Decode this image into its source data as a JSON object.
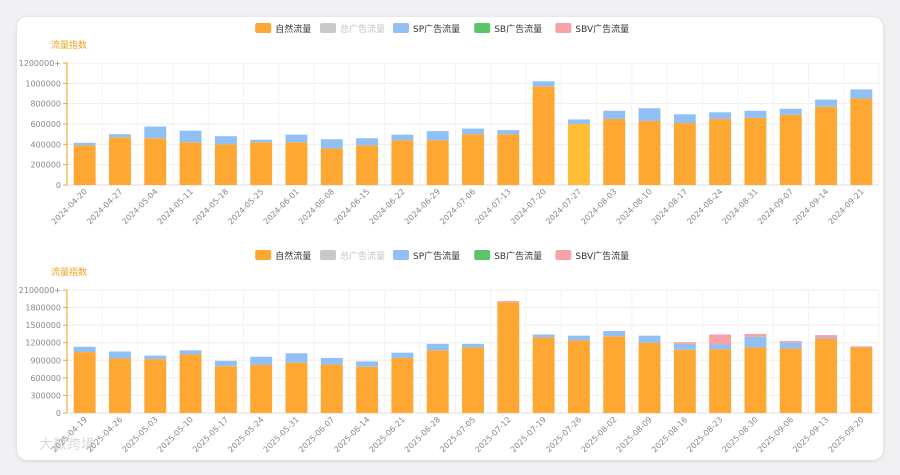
{
  "colors": {
    "natural": "#ffa733",
    "natural_highlight": "#ffbd38",
    "general": "#c9c9c9",
    "sp": "#91c0f5",
    "sb": "#5cc46a",
    "sbv": "#f5a3a8",
    "axis_label": "#f0a21e",
    "grid": "#eeeeee",
    "tick": "#888888"
  },
  "watermark": "大数跨境",
  "chart_data": [
    {
      "type": "bar",
      "stacked": true,
      "ylabel": "流量指数",
      "ylim": [
        0,
        1200000
      ],
      "yticks": [
        0,
        200000,
        400000,
        600000,
        800000,
        1000000,
        1200000
      ],
      "ytick_labels": [
        "0",
        "200000",
        "400000",
        "600000",
        "800000",
        "1000000",
        "1200000+"
      ],
      "legend_position": "top-center",
      "grid": true,
      "highlight_index": 14,
      "categories": [
        "2024-04-20",
        "2024-04-27",
        "2024-05-04",
        "2024-05-11",
        "2024-05-18",
        "2024-05-25",
        "2024-06-01",
        "2024-06-08",
        "2024-06-15",
        "2024-06-22",
        "2024-06-29",
        "2024-07-06",
        "2024-07-13",
        "2024-07-20",
        "2024-07-27",
        "2024-08-03",
        "2024-08-10",
        "2024-08-17",
        "2024-08-24",
        "2024-08-31",
        "2024-09-07",
        "2024-09-14",
        "2024-09-21"
      ],
      "series": [
        {
          "name": "自然流量",
          "key": "natural",
          "values": [
            390000,
            470000,
            460000,
            420000,
            400000,
            420000,
            420000,
            360000,
            390000,
            440000,
            440000,
            500000,
            500000,
            970000,
            600000,
            650000,
            630000,
            610000,
            650000,
            660000,
            690000,
            770000,
            850000
          ]
        },
        {
          "name": "总广告流量",
          "key": "general",
          "disabled": true,
          "values": [
            0,
            0,
            0,
            0,
            0,
            0,
            0,
            0,
            0,
            0,
            0,
            0,
            0,
            0,
            0,
            0,
            0,
            0,
            0,
            0,
            0,
            0,
            0
          ]
        },
        {
          "name": "SP广告流量",
          "key": "sp",
          "values": [
            25000,
            30000,
            115000,
            115000,
            80000,
            25000,
            75000,
            90000,
            70000,
            55000,
            90000,
            55000,
            40000,
            50000,
            45000,
            80000,
            125000,
            85000,
            65000,
            70000,
            60000,
            70000,
            90000
          ]
        },
        {
          "name": "SB广告流量",
          "key": "sb",
          "values": [
            0,
            0,
            0,
            0,
            0,
            0,
            0,
            0,
            0,
            0,
            0,
            0,
            0,
            0,
            0,
            0,
            0,
            0,
            0,
            0,
            0,
            0,
            0
          ]
        },
        {
          "name": "SBV广告流量",
          "key": "sbv",
          "values": [
            0,
            0,
            0,
            0,
            0,
            0,
            0,
            0,
            0,
            0,
            0,
            0,
            0,
            0,
            0,
            0,
            0,
            0,
            0,
            0,
            0,
            0,
            0
          ]
        }
      ]
    },
    {
      "type": "bar",
      "stacked": true,
      "ylabel": "流量指数",
      "ylim": [
        0,
        2100000
      ],
      "yticks": [
        0,
        300000,
        600000,
        900000,
        1200000,
        1500000,
        1800000,
        2100000
      ],
      "ytick_labels": [
        "0",
        "300000",
        "600000",
        "900000",
        "1200000",
        "1500000",
        "1800000",
        "2100000+"
      ],
      "legend_position": "top-center",
      "grid": true,
      "highlight_index": -1,
      "categories": [
        "2025-04-19",
        "2025-04-26",
        "2025-05-03",
        "2025-05-10",
        "2025-05-17",
        "2025-05-24",
        "2025-05-31",
        "2025-06-07",
        "2025-06-14",
        "2025-06-21",
        "2025-06-28",
        "2025-07-05",
        "2025-07-12",
        "2025-07-19",
        "2025-07-26",
        "2025-08-02",
        "2025-08-09",
        "2025-08-16",
        "2025-08-23",
        "2025-08-30",
        "2025-09-06",
        "2025-09-13",
        "2025-09-20"
      ],
      "series": [
        {
          "name": "自然流量",
          "key": "natural",
          "values": [
            1040000,
            930000,
            920000,
            1000000,
            800000,
            820000,
            860000,
            830000,
            790000,
            940000,
            1070000,
            1120000,
            1890000,
            1290000,
            1240000,
            1310000,
            1200000,
            1080000,
            1090000,
            1120000,
            1100000,
            1270000,
            1120000
          ]
        },
        {
          "name": "总广告流量",
          "key": "general",
          "disabled": true,
          "values": [
            0,
            0,
            0,
            0,
            0,
            0,
            0,
            0,
            0,
            0,
            0,
            0,
            0,
            0,
            0,
            0,
            0,
            0,
            0,
            0,
            0,
            0,
            0
          ]
        },
        {
          "name": "SP广告流量",
          "key": "sp",
          "values": [
            90000,
            120000,
            60000,
            70000,
            90000,
            140000,
            160000,
            110000,
            90000,
            90000,
            110000,
            60000,
            0,
            50000,
            80000,
            90000,
            120000,
            100000,
            80000,
            180000,
            100000,
            20000,
            10000
          ]
        },
        {
          "name": "SB广告流量",
          "key": "sb",
          "values": [
            0,
            0,
            0,
            0,
            0,
            0,
            0,
            0,
            0,
            0,
            0,
            0,
            0,
            0,
            0,
            0,
            0,
            0,
            0,
            0,
            0,
            0,
            0
          ]
        },
        {
          "name": "SBV广告流量",
          "key": "sbv",
          "values": [
            0,
            0,
            0,
            0,
            0,
            0,
            0,
            0,
            0,
            0,
            0,
            0,
            20000,
            0,
            0,
            0,
            0,
            30000,
            170000,
            50000,
            30000,
            40000,
            10000
          ]
        }
      ]
    }
  ]
}
